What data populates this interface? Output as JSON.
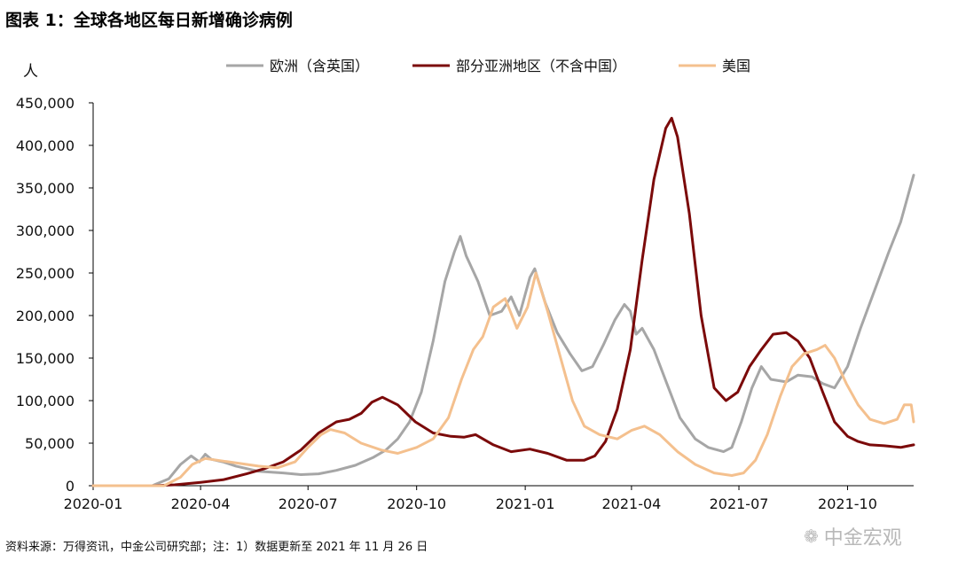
{
  "title": "图表 1：全球各地区每日新增确诊病例",
  "source_note": "资料来源：万得资讯，中金公司研究部；注：1）数据更新至 2021 年 11 月 26 日",
  "watermark": "中金宏观",
  "chart_data": {
    "type": "line",
    "title": "图表 1：全球各地区每日新增确诊病例",
    "ylabel": "人",
    "xlabel": "",
    "ylim": [
      0,
      450000
    ],
    "yticks": [
      0,
      50000,
      100000,
      150000,
      200000,
      250000,
      300000,
      350000,
      400000,
      450000
    ],
    "ytick_labels": [
      "0",
      "50,000",
      "100,000",
      "150,000",
      "200,000",
      "250,000",
      "300,000",
      "350,000",
      "400,000",
      "450,000"
    ],
    "xlim": [
      "2020-01-01",
      "2021-11-26"
    ],
    "xticks": [
      "2020-01-01",
      "2020-04-01",
      "2020-07-01",
      "2020-10-01",
      "2021-01-01",
      "2021-04-01",
      "2021-07-01",
      "2021-10-01"
    ],
    "xtick_labels": [
      "2020-01",
      "2020-04",
      "2020-07",
      "2020-10",
      "2021-01",
      "2021-04",
      "2021-07",
      "2021-10"
    ],
    "grid": false,
    "legend_position": "top",
    "series": [
      {
        "name": "欧洲（含英国）",
        "color": "#a6a6a6",
        "points": [
          [
            "2020-01-01",
            0
          ],
          [
            "2020-02-20",
            0
          ],
          [
            "2020-03-05",
            8000
          ],
          [
            "2020-03-15",
            25000
          ],
          [
            "2020-03-24",
            35000
          ],
          [
            "2020-03-31",
            28000
          ],
          [
            "2020-04-05",
            37000
          ],
          [
            "2020-04-10",
            31000
          ],
          [
            "2020-04-20",
            28000
          ],
          [
            "2020-05-01",
            23000
          ],
          [
            "2020-05-20",
            17000
          ],
          [
            "2020-06-10",
            15000
          ],
          [
            "2020-06-25",
            13000
          ],
          [
            "2020-07-10",
            14000
          ],
          [
            "2020-07-25",
            18000
          ],
          [
            "2020-08-10",
            24000
          ],
          [
            "2020-08-25",
            33000
          ],
          [
            "2020-09-05",
            42000
          ],
          [
            "2020-09-15",
            55000
          ],
          [
            "2020-09-25",
            75000
          ],
          [
            "2020-10-05",
            110000
          ],
          [
            "2020-10-15",
            170000
          ],
          [
            "2020-10-25",
            240000
          ],
          [
            "2020-11-02",
            275000
          ],
          [
            "2020-11-07",
            293000
          ],
          [
            "2020-11-12",
            270000
          ],
          [
            "2020-11-22",
            240000
          ],
          [
            "2020-12-02",
            200000
          ],
          [
            "2020-12-12",
            205000
          ],
          [
            "2020-12-20",
            222000
          ],
          [
            "2020-12-27",
            200000
          ],
          [
            "2021-01-05",
            245000
          ],
          [
            "2021-01-09",
            255000
          ],
          [
            "2021-01-18",
            215000
          ],
          [
            "2021-01-28",
            180000
          ],
          [
            "2021-02-08",
            155000
          ],
          [
            "2021-02-18",
            135000
          ],
          [
            "2021-02-27",
            140000
          ],
          [
            "2021-03-08",
            165000
          ],
          [
            "2021-03-18",
            195000
          ],
          [
            "2021-03-26",
            213000
          ],
          [
            "2021-03-31",
            205000
          ],
          [
            "2021-04-05",
            178000
          ],
          [
            "2021-04-10",
            185000
          ],
          [
            "2021-04-20",
            160000
          ],
          [
            "2021-05-01",
            120000
          ],
          [
            "2021-05-12",
            80000
          ],
          [
            "2021-05-25",
            55000
          ],
          [
            "2021-06-05",
            45000
          ],
          [
            "2021-06-18",
            40000
          ],
          [
            "2021-06-25",
            45000
          ],
          [
            "2021-07-03",
            75000
          ],
          [
            "2021-07-12",
            115000
          ],
          [
            "2021-07-20",
            140000
          ],
          [
            "2021-07-28",
            125000
          ],
          [
            "2021-08-10",
            122000
          ],
          [
            "2021-08-20",
            130000
          ],
          [
            "2021-09-01",
            128000
          ],
          [
            "2021-09-10",
            120000
          ],
          [
            "2021-09-20",
            115000
          ],
          [
            "2021-10-01",
            140000
          ],
          [
            "2021-10-12",
            185000
          ],
          [
            "2021-10-24",
            230000
          ],
          [
            "2021-11-05",
            275000
          ],
          [
            "2021-11-15",
            310000
          ],
          [
            "2021-11-26",
            365000
          ]
        ]
      },
      {
        "name": "部分亚洲地区（不含中国）",
        "color": "#7b0a0a",
        "points": [
          [
            "2020-01-01",
            0
          ],
          [
            "2020-02-20",
            0
          ],
          [
            "2020-03-10",
            1000
          ],
          [
            "2020-04-01",
            4000
          ],
          [
            "2020-04-20",
            7000
          ],
          [
            "2020-05-10",
            14000
          ],
          [
            "2020-05-25",
            20000
          ],
          [
            "2020-06-10",
            28000
          ],
          [
            "2020-06-25",
            42000
          ],
          [
            "2020-07-10",
            62000
          ],
          [
            "2020-07-25",
            75000
          ],
          [
            "2020-08-05",
            78000
          ],
          [
            "2020-08-15",
            85000
          ],
          [
            "2020-08-24",
            98000
          ],
          [
            "2020-09-02",
            104000
          ],
          [
            "2020-09-15",
            95000
          ],
          [
            "2020-09-30",
            75000
          ],
          [
            "2020-10-15",
            62000
          ],
          [
            "2020-10-30",
            58000
          ],
          [
            "2020-11-10",
            57000
          ],
          [
            "2020-11-20",
            60000
          ],
          [
            "2020-12-05",
            48000
          ],
          [
            "2020-12-20",
            40000
          ],
          [
            "2021-01-05",
            43000
          ],
          [
            "2021-01-20",
            38000
          ],
          [
            "2021-02-05",
            30000
          ],
          [
            "2021-02-20",
            30000
          ],
          [
            "2021-03-01",
            35000
          ],
          [
            "2021-03-10",
            52000
          ],
          [
            "2021-03-20",
            90000
          ],
          [
            "2021-03-31",
            160000
          ],
          [
            "2021-04-10",
            265000
          ],
          [
            "2021-04-20",
            360000
          ],
          [
            "2021-04-30",
            420000
          ],
          [
            "2021-05-05",
            432000
          ],
          [
            "2021-05-10",
            410000
          ],
          [
            "2021-05-20",
            320000
          ],
          [
            "2021-05-30",
            200000
          ],
          [
            "2021-06-10",
            115000
          ],
          [
            "2021-06-20",
            100000
          ],
          [
            "2021-06-30",
            110000
          ],
          [
            "2021-07-10",
            140000
          ],
          [
            "2021-07-20",
            160000
          ],
          [
            "2021-07-30",
            178000
          ],
          [
            "2021-08-10",
            180000
          ],
          [
            "2021-08-20",
            170000
          ],
          [
            "2021-08-30",
            150000
          ],
          [
            "2021-09-10",
            110000
          ],
          [
            "2021-09-20",
            75000
          ],
          [
            "2021-10-01",
            58000
          ],
          [
            "2021-10-10",
            52000
          ],
          [
            "2021-10-20",
            48000
          ],
          [
            "2021-11-01",
            47000
          ],
          [
            "2021-11-15",
            45000
          ],
          [
            "2021-11-26",
            48000
          ]
        ]
      },
      {
        "name": "美国",
        "color": "#f4c08e",
        "points": [
          [
            "2020-01-01",
            0
          ],
          [
            "2020-03-01",
            0
          ],
          [
            "2020-03-15",
            10000
          ],
          [
            "2020-03-25",
            25000
          ],
          [
            "2020-04-05",
            32000
          ],
          [
            "2020-04-20",
            29000
          ],
          [
            "2020-05-05",
            26000
          ],
          [
            "2020-05-20",
            23000
          ],
          [
            "2020-06-05",
            21000
          ],
          [
            "2020-06-20",
            28000
          ],
          [
            "2020-07-01",
            45000
          ],
          [
            "2020-07-12",
            60000
          ],
          [
            "2020-07-20",
            66000
          ],
          [
            "2020-08-01",
            62000
          ],
          [
            "2020-08-15",
            50000
          ],
          [
            "2020-09-01",
            42000
          ],
          [
            "2020-09-15",
            38000
          ],
          [
            "2020-10-01",
            45000
          ],
          [
            "2020-10-15",
            55000
          ],
          [
            "2020-10-28",
            80000
          ],
          [
            "2020-11-08",
            125000
          ],
          [
            "2020-11-18",
            160000
          ],
          [
            "2020-11-26",
            175000
          ],
          [
            "2020-12-05",
            210000
          ],
          [
            "2020-12-15",
            220000
          ],
          [
            "2020-12-25",
            185000
          ],
          [
            "2021-01-03",
            210000
          ],
          [
            "2021-01-10",
            250000
          ],
          [
            "2021-01-20",
            205000
          ],
          [
            "2021-01-30",
            155000
          ],
          [
            "2021-02-10",
            100000
          ],
          [
            "2021-02-20",
            70000
          ],
          [
            "2021-03-05",
            60000
          ],
          [
            "2021-03-20",
            55000
          ],
          [
            "2021-04-01",
            65000
          ],
          [
            "2021-04-12",
            70000
          ],
          [
            "2021-04-25",
            60000
          ],
          [
            "2021-05-10",
            40000
          ],
          [
            "2021-05-25",
            25000
          ],
          [
            "2021-06-10",
            15000
          ],
          [
            "2021-06-25",
            12000
          ],
          [
            "2021-07-05",
            15000
          ],
          [
            "2021-07-15",
            30000
          ],
          [
            "2021-07-25",
            60000
          ],
          [
            "2021-08-05",
            105000
          ],
          [
            "2021-08-15",
            140000
          ],
          [
            "2021-08-25",
            155000
          ],
          [
            "2021-09-05",
            160000
          ],
          [
            "2021-09-12",
            165000
          ],
          [
            "2021-09-20",
            150000
          ],
          [
            "2021-09-30",
            120000
          ],
          [
            "2021-10-10",
            95000
          ],
          [
            "2021-10-20",
            78000
          ],
          [
            "2021-11-01",
            73000
          ],
          [
            "2021-11-12",
            78000
          ],
          [
            "2021-11-18",
            95000
          ],
          [
            "2021-11-24",
            95000
          ],
          [
            "2021-11-26",
            75000
          ]
        ]
      }
    ]
  }
}
